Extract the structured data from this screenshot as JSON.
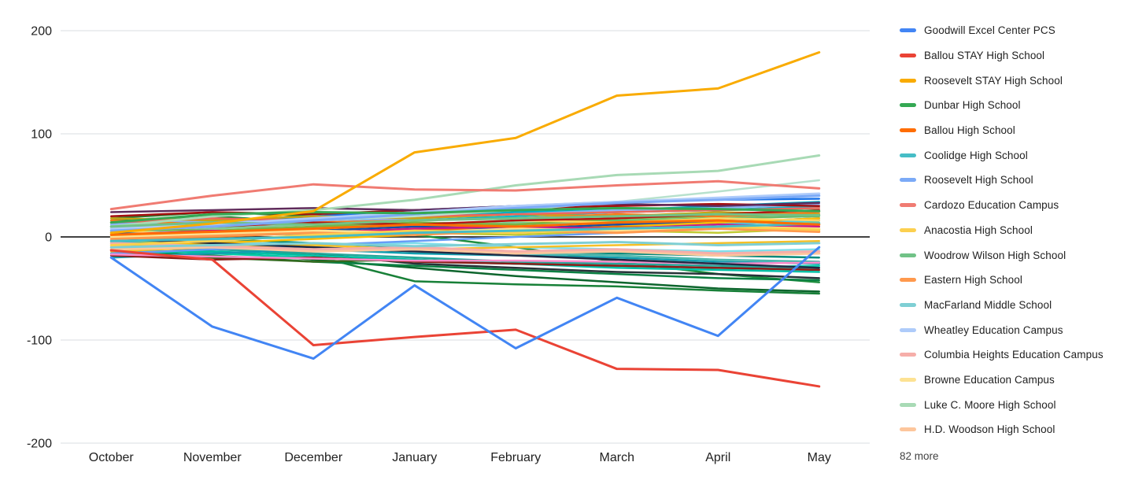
{
  "chart_data": {
    "type": "line",
    "title": "",
    "xlabel": "",
    "ylabel": "",
    "categories": [
      "October",
      "November",
      "December",
      "January",
      "February",
      "March",
      "April",
      "May"
    ],
    "y_ticks": [
      200,
      100,
      0,
      -100,
      -200
    ],
    "ylim": [
      -200,
      200
    ],
    "grid": true,
    "legend_position": "right",
    "zero_line_color": "#424242",
    "gridline_color": "#DADCE0",
    "tick_label_color": "#212121",
    "more_label": "82 more",
    "series": [
      {
        "name": "Goodwill Excel Center PCS",
        "color": "#4285F4",
        "values": [
          -20,
          -87,
          -118,
          -47,
          -108,
          -59,
          -96,
          -10
        ]
      },
      {
        "name": "Ballou STAY High School",
        "color": "#EA4335",
        "values": [
          -13,
          -22,
          -105,
          -97,
          -90,
          -128,
          -129,
          -145
        ]
      },
      {
        "name": "Roosevelt STAY High School",
        "color": "#F9AB00",
        "values": [
          4,
          13,
          25,
          82,
          96,
          137,
          144,
          179
        ]
      },
      {
        "name": "Dunbar High School",
        "color": "#34A853",
        "values": [
          14,
          22,
          24,
          23,
          26,
          28,
          27,
          25
        ]
      },
      {
        "name": "Ballou High School",
        "color": "#FF6D01",
        "values": [
          2,
          5,
          8,
          12,
          10,
          14,
          16,
          12
        ]
      },
      {
        "name": "Coolidge High School",
        "color": "#46BDC6",
        "values": [
          -4,
          -2,
          0,
          4,
          6,
          8,
          10,
          13
        ]
      },
      {
        "name": "Roosevelt High School",
        "color": "#7BAAF7",
        "values": [
          6,
          10,
          16,
          22,
          28,
          33,
          36,
          40
        ]
      },
      {
        "name": "Cardozo Education Campus",
        "color": "#F07B72",
        "values": [
          27,
          40,
          51,
          46,
          45,
          50,
          54,
          47
        ]
      },
      {
        "name": "Anacostia High School",
        "color": "#FCD04F",
        "values": [
          -8,
          -4,
          2,
          6,
          4,
          8,
          10,
          7
        ]
      },
      {
        "name": "Woodrow Wilson High School",
        "color": "#71C287",
        "values": [
          10,
          14,
          12,
          16,
          18,
          20,
          22,
          21
        ]
      },
      {
        "name": "Eastern High School",
        "color": "#FF994D",
        "values": [
          -2,
          1,
          4,
          2,
          6,
          4,
          8,
          5
        ]
      },
      {
        "name": "MacFarland Middle School",
        "color": "#7FCFD4",
        "values": [
          -10,
          -8,
          -6,
          -9,
          -7,
          -5,
          -8,
          -6
        ]
      },
      {
        "name": "Wheatley Education Campus",
        "color": "#AECBFA",
        "values": [
          8,
          12,
          18,
          24,
          30,
          34,
          38,
          42
        ]
      },
      {
        "name": "Columbia Heights Education Campus",
        "color": "#F6AEA9",
        "values": [
          -6,
          -9,
          -12,
          -10,
          -14,
          -12,
          -16,
          -14
        ]
      },
      {
        "name": "Browne Education Campus",
        "color": "#FDE293",
        "values": [
          0,
          3,
          6,
          4,
          8,
          6,
          10,
          8
        ]
      },
      {
        "name": "Luke C. Moore High School",
        "color": "#A8DAB5",
        "values": [
          10,
          20,
          26,
          36,
          50,
          60,
          64,
          79
        ]
      },
      {
        "name": "H.D. Woodson High School",
        "color": "#FDC69C",
        "values": [
          -12,
          -10,
          -14,
          -12,
          -16,
          -14,
          -18,
          -16
        ]
      }
    ],
    "other_series_unlabeled": [
      {
        "color": "#0D652D",
        "values": [
          -8,
          -14,
          -22,
          -30,
          -38,
          -44,
          -50,
          -53
        ]
      },
      {
        "color": "#188038",
        "values": [
          -4,
          -10,
          -18,
          -43,
          -46,
          -48,
          -52,
          -55
        ]
      },
      {
        "color": "#1E8E3E",
        "values": [
          16,
          20,
          14,
          2,
          -10,
          -24,
          -36,
          -44
        ]
      },
      {
        "color": "#0B8043",
        "values": [
          -14,
          -18,
          -24,
          -28,
          -32,
          -36,
          -40,
          -42
        ]
      },
      {
        "color": "#263238",
        "values": [
          -6,
          -8,
          -16,
          -26,
          -30,
          -34,
          -36,
          -40
        ]
      },
      {
        "color": "#2E7D32",
        "values": [
          18,
          24,
          20,
          22,
          18,
          16,
          12,
          10
        ]
      },
      {
        "color": "#43A047",
        "values": [
          12,
          16,
          20,
          18,
          22,
          24,
          26,
          28
        ]
      },
      {
        "color": "#66BB6A",
        "values": [
          6,
          10,
          8,
          14,
          12,
          16,
          18,
          20
        ]
      },
      {
        "color": "#81C995",
        "values": [
          4,
          8,
          12,
          10,
          14,
          12,
          16,
          14
        ]
      },
      {
        "color": "#5BB974",
        "values": [
          -2,
          2,
          6,
          4,
          8,
          10,
          12,
          16
        ]
      },
      {
        "color": "#7CB342",
        "values": [
          8,
          6,
          10,
          14,
          12,
          18,
          20,
          22
        ]
      },
      {
        "color": "#9CCC65",
        "values": [
          0,
          4,
          2,
          6,
          8,
          6,
          10,
          12
        ]
      },
      {
        "color": "#C0CA33",
        "values": [
          -6,
          -2,
          0,
          4,
          2,
          6,
          4,
          8
        ]
      },
      {
        "color": "#33691E",
        "values": [
          -16,
          -20,
          -24,
          -22,
          -26,
          -28,
          -30,
          -32
        ]
      },
      {
        "color": "#00C9A7",
        "values": [
          -12,
          -16,
          -20,
          -24,
          -26,
          -28,
          -30,
          -28
        ]
      },
      {
        "color": "#26A69A",
        "values": [
          -8,
          -12,
          -16,
          -20,
          -24,
          -26,
          -28,
          -30
        ]
      },
      {
        "color": "#00BFA5",
        "values": [
          -16,
          -14,
          -18,
          -22,
          -26,
          -30,
          -32,
          -34
        ]
      },
      {
        "color": "#4DB6AC",
        "values": [
          -5,
          -8,
          -10,
          -14,
          -16,
          -18,
          -22,
          -24
        ]
      },
      {
        "color": "#00897B",
        "values": [
          2,
          -2,
          -6,
          -10,
          -14,
          -16,
          -18,
          -20
        ]
      },
      {
        "color": "#12B5CB",
        "values": [
          10,
          14,
          18,
          16,
          20,
          24,
          26,
          30
        ]
      },
      {
        "color": "#4DD0E1",
        "values": [
          -2,
          0,
          4,
          8,
          6,
          10,
          12,
          16
        ]
      },
      {
        "color": "#00ACC1",
        "values": [
          14,
          12,
          16,
          20,
          24,
          26,
          30,
          34
        ]
      },
      {
        "color": "#80DEEA",
        "values": [
          0,
          -4,
          -8,
          -6,
          -10,
          -12,
          -14,
          -12
        ]
      },
      {
        "color": "#129EAF",
        "values": [
          -20,
          -16,
          -12,
          -16,
          -18,
          -20,
          -24,
          -26
        ]
      },
      {
        "color": "#1A73E8",
        "values": [
          8,
          14,
          20,
          26,
          30,
          34,
          36,
          37
        ]
      },
      {
        "color": "#669DF6",
        "values": [
          -16,
          -12,
          -8,
          -4,
          0,
          4,
          8,
          12
        ]
      },
      {
        "color": "#174EA6",
        "values": [
          4,
          2,
          6,
          10,
          8,
          12,
          14,
          18
        ]
      },
      {
        "color": "#8AB4F8",
        "values": [
          12,
          16,
          14,
          18,
          22,
          26,
          28,
          32
        ]
      },
      {
        "color": "#FBBC04",
        "values": [
          -10,
          -6,
          -2,
          2,
          6,
          10,
          14,
          18
        ]
      },
      {
        "color": "#FDD663",
        "values": [
          6,
          2,
          8,
          12,
          16,
          14,
          18,
          16
        ]
      },
      {
        "color": "#F6BF26",
        "values": [
          -14,
          -10,
          -8,
          -12,
          -10,
          -8,
          -6,
          -4
        ]
      },
      {
        "color": "#C8A415",
        "values": [
          18,
          16,
          20,
          18,
          22,
          20,
          24,
          22
        ]
      },
      {
        "color": "#E8710A",
        "values": [
          -4,
          0,
          4,
          8,
          6,
          10,
          8,
          6
        ]
      },
      {
        "color": "#FA7B17",
        "values": [
          16,
          12,
          14,
          16,
          18,
          22,
          20,
          24
        ]
      },
      {
        "color": "#A50E0E",
        "values": [
          20,
          24,
          22,
          26,
          28,
          30,
          32,
          30
        ]
      },
      {
        "color": "#B31412",
        "values": [
          6,
          10,
          14,
          12,
          16,
          18,
          22,
          26
        ]
      },
      {
        "color": "#8C1D18",
        "values": [
          -18,
          -22,
          -20,
          -24,
          -26,
          -28,
          -30,
          -32
        ]
      },
      {
        "color": "#EE675C",
        "values": [
          14,
          18,
          16,
          20,
          22,
          24,
          26,
          28
        ]
      },
      {
        "color": "#D01884",
        "values": [
          2,
          6,
          4,
          8,
          10,
          8,
          12,
          10
        ]
      },
      {
        "color": "#FF8BCB",
        "values": [
          -17,
          -19,
          -21,
          -23,
          -23,
          -24,
          -26,
          -25
        ]
      },
      {
        "color": "#B7E1CD",
        "values": [
          8,
          12,
          16,
          20,
          26,
          34,
          44,
          55
        ]
      },
      {
        "color": "#5F2B5B",
        "values": [
          24,
          26,
          28,
          26,
          30,
          32,
          30,
          33
        ]
      },
      {
        "color": "#202A44",
        "values": [
          -2,
          -6,
          -10,
          -14,
          -18,
          -22,
          -26,
          -30
        ]
      }
    ]
  }
}
